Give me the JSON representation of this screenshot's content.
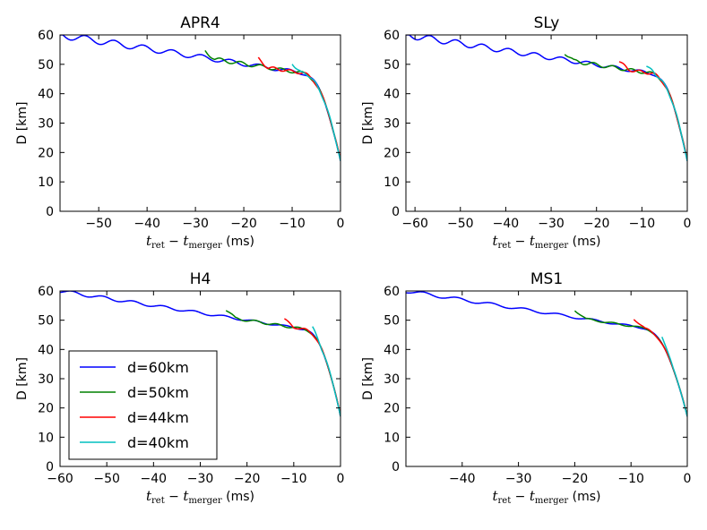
{
  "legend": {
    "entries": [
      {
        "label": "d=60km",
        "color": "#0000ff"
      },
      {
        "label": "d=50km",
        "color": "#008000"
      },
      {
        "label": "d=44km",
        "color": "#ff0000"
      },
      {
        "label": "d=40km",
        "color": "#00bfbf"
      }
    ]
  },
  "chart_data": [
    {
      "type": "line",
      "title": "APR4",
      "ylabel": "D [km]",
      "xlabel": {
        "t": "t",
        "ret": "ret",
        "merger": "merger",
        "unit": "(ms)"
      },
      "xlim": [
        -58,
        0
      ],
      "ylim": [
        0,
        60
      ],
      "xticks": [
        -50,
        -40,
        -30,
        -20,
        -10,
        0
      ],
      "yticks": [
        0,
        10,
        20,
        30,
        40,
        50,
        60
      ],
      "series": [
        {
          "name": "d=60km",
          "color": "#0000ff",
          "start": -58,
          "amp": 1.2,
          "period": 6.0,
          "phase": 0.3
        },
        {
          "name": "d=50km",
          "color": "#008000",
          "start": -28,
          "amp": 1.0,
          "period": 4.2,
          "phase": 1.1
        },
        {
          "name": "d=44km",
          "color": "#ff0000",
          "start": -17,
          "amp": 0.9,
          "period": 3.4,
          "phase": 2.0
        },
        {
          "name": "d=40km",
          "color": "#00bfbf",
          "start": -10,
          "amp": 0.7,
          "period": 2.8,
          "phase": 0.6
        }
      ]
    },
    {
      "type": "line",
      "title": "SLy",
      "ylabel": "D [km]",
      "xlabel": {
        "t": "t",
        "ret": "ret",
        "merger": "merger",
        "unit": "(ms)"
      },
      "xlim": [
        -62,
        0
      ],
      "ylim": [
        0,
        60
      ],
      "xticks": [
        -60,
        -50,
        -40,
        -30,
        -20,
        -10,
        0
      ],
      "yticks": [
        0,
        10,
        20,
        30,
        40,
        50,
        60
      ],
      "series": [
        {
          "name": "d=60km",
          "color": "#0000ff",
          "start": -62,
          "amp": 1.1,
          "period": 5.8,
          "phase": 0.2
        },
        {
          "name": "d=50km",
          "color": "#008000",
          "start": -27,
          "amp": 1.0,
          "period": 4.2,
          "phase": 1.0
        },
        {
          "name": "d=44km",
          "color": "#ff0000",
          "start": -15,
          "amp": 0.9,
          "period": 3.4,
          "phase": 2.1
        },
        {
          "name": "d=40km",
          "color": "#00bfbf",
          "start": -9,
          "amp": 0.7,
          "period": 2.8,
          "phase": 0.4
        }
      ]
    },
    {
      "type": "line",
      "title": "H4",
      "ylabel": "D [km]",
      "xlabel": {
        "t": "t",
        "ret": "ret",
        "merger": "merger",
        "unit": "(ms)"
      },
      "xlim": [
        -60,
        0
      ],
      "ylim": [
        0,
        60
      ],
      "xticks": [
        -60,
        -50,
        -40,
        -30,
        -20,
        -10,
        0
      ],
      "yticks": [
        0,
        10,
        20,
        30,
        40,
        50,
        60
      ],
      "series": [
        {
          "name": "d=60km",
          "color": "#0000ff",
          "start": -60,
          "amp": 0.6,
          "period": 6.5,
          "phase": 0.5
        },
        {
          "name": "d=50km",
          "color": "#008000",
          "start": -24.5,
          "amp": 0.7,
          "period": 4.6,
          "phase": 1.3
        },
        {
          "name": "d=44km",
          "color": "#ff0000",
          "start": -12,
          "amp": 0.6,
          "period": 3.6,
          "phase": 2.2
        },
        {
          "name": "d=40km",
          "color": "#00bfbf",
          "start": -6,
          "amp": 0.5,
          "period": 3.0,
          "phase": 0.9
        }
      ]
    },
    {
      "type": "line",
      "title": "MS1",
      "ylabel": "D [km]",
      "xlabel": {
        "t": "t",
        "ret": "ret",
        "merger": "merger",
        "unit": "(ms)"
      },
      "xlim": [
        -50,
        0
      ],
      "ylim": [
        0,
        60
      ],
      "xticks": [
        -40,
        -30,
        -20,
        -10,
        0
      ],
      "yticks": [
        0,
        10,
        20,
        30,
        40,
        50,
        60
      ],
      "series": [
        {
          "name": "d=60km",
          "color": "#0000ff",
          "start": -50,
          "amp": 0.6,
          "period": 6.0,
          "phase": 0.4
        },
        {
          "name": "d=50km",
          "color": "#008000",
          "start": -20,
          "amp": 0.5,
          "period": 4.4,
          "phase": 1.4
        },
        {
          "name": "d=44km",
          "color": "#ff0000",
          "start": -9.5,
          "amp": 0.4,
          "period": 3.4,
          "phase": 2.3
        },
        {
          "name": "d=40km",
          "color": "#00bfbf",
          "start": -4.5,
          "amp": 0.3,
          "period": 2.8,
          "phase": 0.8
        }
      ]
    }
  ]
}
